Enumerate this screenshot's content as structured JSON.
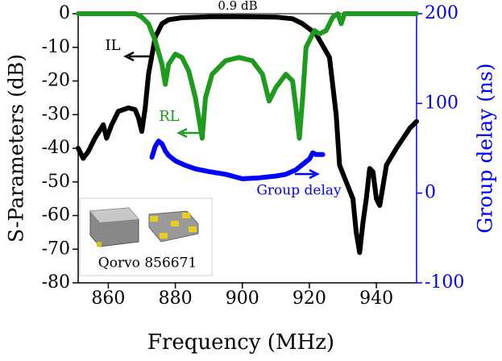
{
  "chart_data": {
    "type": "line",
    "title": "0.9 dB",
    "x_label": "Frequency (MHz)",
    "y_label": "S-Parameters (dB)",
    "y2_label": "Group delay (ns)",
    "inset_label": "Qorvo 856671",
    "xlim": [
      851,
      952
    ],
    "xticks": [
      860,
      880,
      900,
      920,
      940
    ],
    "ylim": [
      -80,
      0
    ],
    "yticks": [
      0,
      -10,
      -20,
      -30,
      -40,
      -50,
      -60,
      -70,
      -80
    ],
    "y2lim": [
      -100,
      200
    ],
    "y2ticks": [
      200,
      100,
      0,
      -100
    ],
    "y2_color": "#0000ff",
    "series": [
      {
        "name": "IL",
        "color": "#000000",
        "x": [
          851,
          852.5,
          854,
          856,
          858.5,
          859.5,
          861,
          863,
          866,
          868,
          869,
          870,
          871,
          872,
          874,
          876,
          878,
          882,
          890,
          900,
          910,
          915,
          918,
          922,
          926,
          928,
          929,
          931,
          933,
          934,
          935,
          936,
          937,
          938,
          939,
          940,
          941,
          943,
          946,
          950,
          952
        ],
        "values": [
          -40,
          -43,
          -41,
          -37,
          -33,
          -37,
          -33,
          -29,
          -28,
          -28.5,
          -31,
          -35,
          -28,
          -18,
          -7,
          -3,
          -1.8,
          -1.2,
          -0.9,
          -0.9,
          -1,
          -1.5,
          -3,
          -6,
          -13,
          -30,
          -45,
          -50,
          -55,
          -65,
          -71,
          -62,
          -55,
          -46,
          -47,
          -55,
          -57,
          -45,
          -40,
          -34,
          -32
        ]
      },
      {
        "name": "RL",
        "color": "#1e9a1e",
        "x": [
          851,
          868,
          870,
          872,
          874,
          876,
          877,
          878,
          880,
          882,
          884,
          886,
          888,
          889,
          891,
          895,
          899,
          903,
          906,
          908,
          910,
          913,
          915,
          916,
          917,
          918,
          919,
          921.5,
          923,
          925,
          926,
          927,
          928.5,
          929.5,
          930.5,
          932,
          952
        ],
        "values": [
          0,
          0,
          -1,
          -3,
          -8,
          -15,
          -21,
          -15,
          -12,
          -13,
          -17,
          -25,
          -37,
          -25,
          -18,
          -14,
          -13,
          -14,
          -18,
          -26,
          -22,
          -18,
          -20,
          -28,
          -37,
          -25,
          -10,
          -5,
          -6,
          -5,
          -3,
          -1,
          0,
          -3,
          0,
          0,
          0
        ]
      },
      {
        "name": "Group delay",
        "color": "#0000ff",
        "axis": "y2",
        "x": [
          873,
          874,
          875,
          876,
          877,
          878,
          880,
          883,
          886,
          890,
          895,
          900,
          905,
          910,
          913,
          916,
          918,
          920,
          921,
          922,
          924
        ],
        "values": [
          40,
          52,
          58,
          55,
          47,
          42,
          36,
          31,
          27,
          24,
          21,
          16,
          17,
          19,
          21,
          26,
          32,
          38,
          45,
          43,
          43
        ]
      }
    ]
  }
}
